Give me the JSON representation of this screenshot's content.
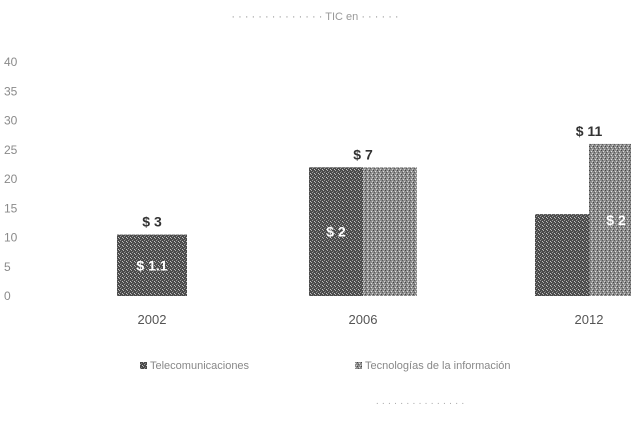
{
  "title": "· · · · · · ·  · · · · · · ·  TIC en · · · · · ·",
  "footnote": "· · · · · · · · · · · · · · ·",
  "colors": {
    "telecom": "#5a5a5a",
    "it": "#9a9a9a",
    "background": "#ffffff"
  },
  "chart_data": {
    "type": "bar",
    "categories": [
      "2002",
      "2006",
      "2012"
    ],
    "series": [
      {
        "name": "Telecomunicaciones",
        "values": [
          10.5,
          22,
          14
        ],
        "inner_labels": [
          "$ 1.1",
          "$ 2",
          ""
        ]
      },
      {
        "name": "Tecnologías de la información",
        "values": [
          0,
          22,
          26
        ],
        "inner_labels": [
          "",
          "",
          "$ 2"
        ]
      }
    ],
    "value_labels": [
      "$ 3",
      "$ 7",
      "$ 11"
    ],
    "ylim": [
      0,
      40
    ],
    "y_ticks": [
      "0",
      "5",
      "10",
      "15",
      "20",
      "25",
      "30",
      "35",
      "40"
    ],
    "legend_position": "bottom",
    "legend": [
      "Telecomunicaciones",
      "Tecnologías de la información"
    ]
  }
}
